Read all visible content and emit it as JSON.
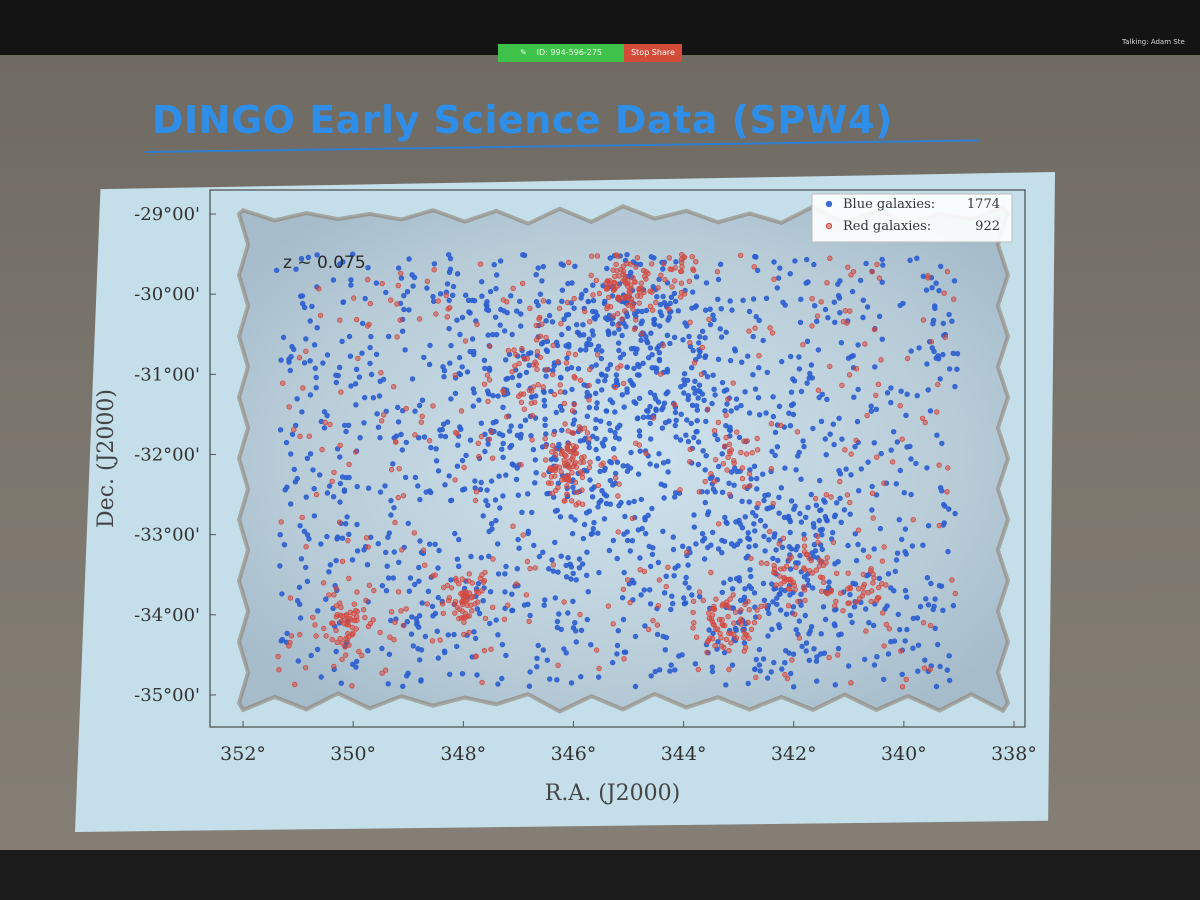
{
  "share_bar": {
    "meeting_id": "ID: 994-596-275",
    "stop_label": "Stop Share",
    "pin_glyph": "✎"
  },
  "speaker": {
    "label": "Talking: Adam Ste"
  },
  "slide": {
    "title": "DINGO Early Science Data (SPW4)"
  },
  "colors": {
    "title": "#2f8ee8",
    "blue_galaxies": "#2e5fd0",
    "red_galaxies": "#d3493f",
    "field_fill": "#a6bccb",
    "field_edge": "#8a7868",
    "panel": "#c4dfea"
  },
  "chart_data": {
    "type": "scatter",
    "annotation": "z ~ 0.075",
    "xlabel": "R.A. (J2000)",
    "ylabel": "Dec. (J2000)",
    "xlim": [
      352.6,
      337.8
    ],
    "ylim": [
      -35.4,
      -28.7
    ],
    "x_reversed": true,
    "xticks": [
      352,
      350,
      348,
      346,
      344,
      342,
      340,
      338
    ],
    "xtick_labels": [
      "352°",
      "350°",
      "348°",
      "346°",
      "344°",
      "342°",
      "340°",
      "338°"
    ],
    "yticks": [
      -29,
      -30,
      -31,
      -32,
      -33,
      -34,
      -35
    ],
    "ytick_labels": [
      "-29°00'",
      "-30°00'",
      "-31°00'",
      "-32°00'",
      "-33°00'",
      "-34°00'",
      "-35°00'"
    ],
    "grid": false,
    "legend": {
      "placement": "top-right",
      "entries": [
        {
          "label": "Blue galaxies:",
          "count": "1774"
        },
        {
          "label": "Red galaxies:",
          "count": "922"
        }
      ]
    },
    "survey_field": {
      "ra_range": [
        352.0,
        338.2
      ],
      "dec_range": [
        -35.1,
        -29.0
      ]
    },
    "series": [
      {
        "name": "Blue galaxies",
        "count": 1774,
        "color": "#2e5fd0",
        "distribution": {
          "ra_range": [
            351.4,
            339.0
          ],
          "dec_range": [
            -34.9,
            -29.5
          ],
          "clusters": [
            {
              "ra": 346.3,
              "dec": -31.6,
              "spread": [
                1.1,
                1.3
              ],
              "weight": 3
            },
            {
              "ra": 344.8,
              "dec": -30.6,
              "spread": [
                0.8,
                0.6
              ],
              "weight": 2
            },
            {
              "ra": 342.3,
              "dec": -33.5,
              "spread": [
                0.9,
                0.8
              ],
              "weight": 2
            },
            {
              "ra": 342.8,
              "dec": -31.8,
              "spread": [
                0.9,
                1.0
              ],
              "weight": 1
            },
            {
              "ra": 348.5,
              "dec": -32.5,
              "spread": [
                1.4,
                1.6
              ],
              "weight": 1
            }
          ]
        }
      },
      {
        "name": "Red galaxies",
        "count": 922,
        "color": "#d3493f",
        "distribution": {
          "ra_range": [
            351.4,
            339.0
          ],
          "dec_range": [
            -34.9,
            -29.5
          ],
          "clusters": [
            {
              "ra": 346.1,
              "dec": -32.1,
              "spread": [
                0.25,
                0.2
              ],
              "weight": 3
            },
            {
              "ra": 345.0,
              "dec": -29.9,
              "spread": [
                0.3,
                0.2
              ],
              "weight": 3
            },
            {
              "ra": 350.1,
              "dec": -34.1,
              "spread": [
                0.25,
                0.2
              ],
              "weight": 2
            },
            {
              "ra": 348.0,
              "dec": -33.8,
              "spread": [
                0.2,
                0.2
              ],
              "weight": 2
            },
            {
              "ra": 343.2,
              "dec": -34.1,
              "spread": [
                0.3,
                0.2
              ],
              "weight": 2
            },
            {
              "ra": 341.9,
              "dec": -33.5,
              "spread": [
                0.3,
                0.2
              ],
              "weight": 2
            },
            {
              "ra": 343.0,
              "dec": -32.0,
              "spread": [
                0.25,
                0.25
              ],
              "weight": 1
            },
            {
              "ra": 346.8,
              "dec": -31.0,
              "spread": [
                0.4,
                0.5
              ],
              "weight": 2
            },
            {
              "ra": 340.8,
              "dec": -33.7,
              "spread": [
                0.3,
                0.2
              ],
              "weight": 1
            },
            {
              "ra": 344.0,
              "dec": -29.6,
              "spread": [
                0.3,
                0.2
              ],
              "weight": 1
            }
          ]
        }
      }
    ]
  }
}
